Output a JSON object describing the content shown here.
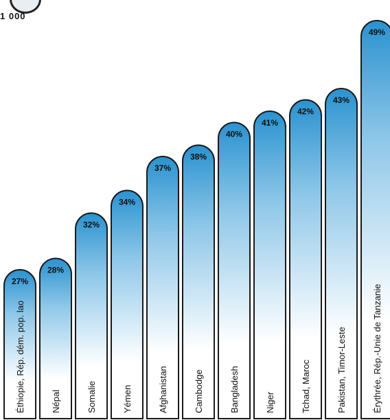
{
  "header": {
    "unit_label": "1 000"
  },
  "colors": {
    "bar_top": "#2a92cf",
    "bar_mid": "#8fc7e8",
    "bar_bottom": "#ffffff",
    "bar_outline": "#1a1a1a",
    "label_text": "#111111"
  },
  "chart_data": {
    "type": "bar",
    "categories": [
      "Éthiopie, Rép. dém. pop. lao",
      "Népal",
      "Somalie",
      "Yémen",
      "Afghanistan",
      "Cambodge",
      "Bangladesh",
      "Niger",
      "Tchad, Maroc",
      "Pakistan, Timor-Leste",
      "Érythrée, Rép.-Unie de Tanzanie"
    ],
    "values": [
      27,
      28,
      32,
      34,
      37,
      38,
      40,
      41,
      42,
      43,
      49
    ],
    "value_labels": [
      "27%",
      "28%",
      "32%",
      "34%",
      "37%",
      "38%",
      "40%",
      "41%",
      "42%",
      "43%",
      "49%"
    ],
    "ylim": [
      0,
      50
    ],
    "grid": false,
    "legend": "none"
  }
}
